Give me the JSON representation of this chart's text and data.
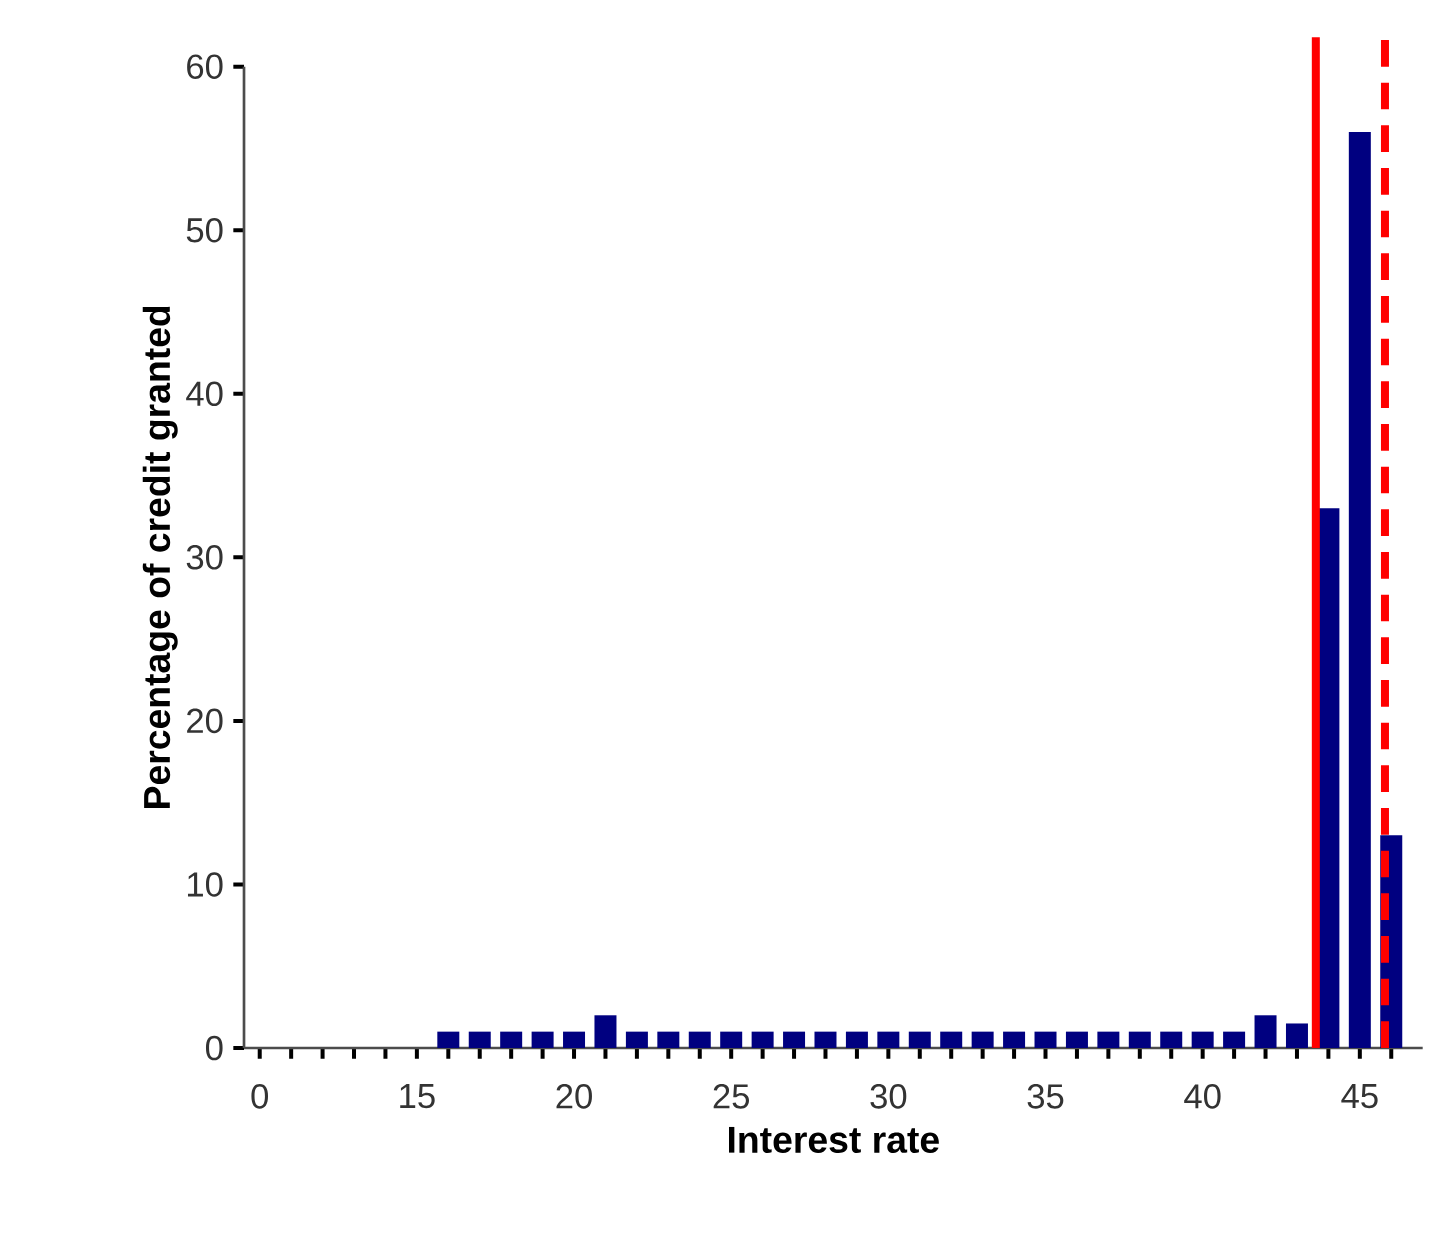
{
  "chart_data": {
    "type": "bar",
    "xlabel": "Interest rate",
    "ylabel": "Percentage of credit granted",
    "categories": [
      "0",
      null,
      null,
      null,
      null,
      "15",
      null,
      null,
      null,
      null,
      "20",
      null,
      null,
      null,
      null,
      "25",
      null,
      null,
      null,
      null,
      "30",
      null,
      null,
      null,
      null,
      "35",
      null,
      null,
      null,
      null,
      "40",
      null,
      null,
      null,
      null,
      "45",
      null
    ],
    "values": [
      0,
      0,
      0,
      0,
      0,
      0,
      1,
      1,
      1,
      1,
      1,
      2,
      1,
      1,
      1,
      1,
      1,
      1,
      1,
      1,
      1,
      1,
      1,
      1,
      1,
      1,
      1,
      1,
      1,
      1,
      1,
      1,
      2,
      1.5,
      33,
      56,
      13
    ],
    "color": "#000080",
    "ylim": [
      0,
      60
    ],
    "yticks": [
      0,
      10,
      20,
      30,
      40,
      50,
      60
    ]
  }
}
